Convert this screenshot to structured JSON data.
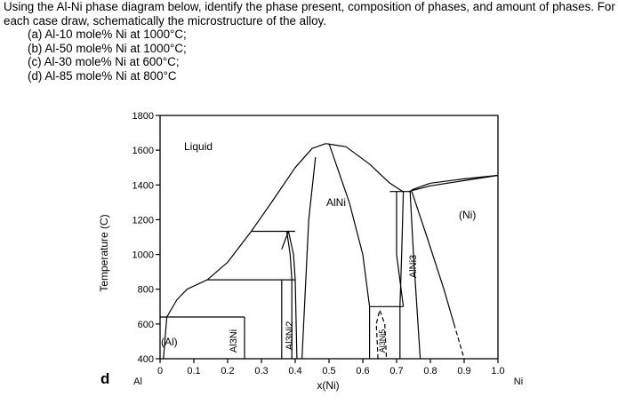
{
  "question": {
    "intro": "Using the Al-Ni phase diagram below, identify the phase present, composition of phases, and amount of phases. For each case draw, schematically the microstructure of the alloy.",
    "items": [
      "(a) Al-10 mole% Ni at 1000°C;",
      "(b) Al-50 mole% Ni at 1000°C;",
      "(c) Al-30 mole% Ni at 600°C;",
      "(d) Al-85 mole% Ni at 800°C"
    ]
  },
  "figure": {
    "panel_label": "d",
    "ylabel": "Temperature (C)",
    "xlabel": "x(Ni)",
    "left_end_label": "Al",
    "right_end_label": "Ni",
    "phase_labels": {
      "liquid": "Liquid",
      "alni": "AlNi",
      "ni": "(Ni)",
      "al": "(Al)",
      "al3ni": "Al3Ni",
      "al3ni2": "Al3Ni2",
      "alni3": "AlNi3",
      "al3ni5": "Al3Ni5"
    }
  },
  "chart_data": {
    "type": "line",
    "x_ticks": [
      0,
      0.1,
      0.2,
      0.3,
      0.4,
      0.5,
      0.6,
      0.7,
      0.8,
      0.9,
      1.0
    ],
    "x_tick_labels": [
      "0",
      "0.1",
      "0.2",
      "0.3",
      "0.4",
      "0.5",
      "0.6",
      "0.7",
      "0.8",
      "0.9",
      "1.0"
    ],
    "y_ticks": [
      400,
      600,
      800,
      1000,
      1200,
      1400,
      1600,
      1800
    ],
    "xlim": [
      0,
      1.0
    ],
    "ylim": [
      400,
      1800
    ],
    "xlabel": "x(Ni)",
    "ylabel": "Temperature (C)",
    "grid": false,
    "series": [
      {
        "style": "solid",
        "points": [
          [
            0,
            640
          ],
          [
            0.02,
            640
          ],
          [
            0.05,
            740
          ],
          [
            0.08,
            800
          ],
          [
            0.14,
            854
          ]
        ]
      },
      {
        "style": "solid",
        "points": [
          [
            0.14,
            854
          ],
          [
            0.2,
            955
          ],
          [
            0.27,
            1133
          ],
          [
            0.33,
            1300
          ],
          [
            0.4,
            1500
          ],
          [
            0.45,
            1610
          ],
          [
            0.49,
            1638
          ]
        ]
      },
      {
        "style": "solid",
        "points": [
          [
            0.49,
            1638
          ],
          [
            0.55,
            1620
          ],
          [
            0.62,
            1520
          ],
          [
            0.68,
            1410
          ],
          [
            0.72,
            1360
          ]
        ]
      },
      {
        "style": "solid",
        "points": [
          [
            0.745,
            1372
          ],
          [
            0.8,
            1410
          ],
          [
            0.9,
            1435
          ],
          [
            1.0,
            1455
          ]
        ]
      },
      {
        "style": "solid",
        "points": [
          [
            0.735,
            1362
          ],
          [
            0.8,
            1395
          ],
          [
            0.9,
            1425
          ],
          [
            1.0,
            1455
          ]
        ]
      },
      {
        "style": "solid",
        "points": [
          [
            0.02,
            640
          ],
          [
            0.25,
            640
          ]
        ]
      },
      {
        "style": "solid",
        "points": [
          [
            0.14,
            854
          ],
          [
            0.4,
            854
          ]
        ]
      },
      {
        "style": "solid",
        "points": [
          [
            0.27,
            1133
          ],
          [
            0.4,
            1133
          ]
        ]
      },
      {
        "style": "solid",
        "points": [
          [
            0.68,
            1362
          ],
          [
            0.745,
            1362
          ]
        ]
      },
      {
        "style": "solid",
        "points": [
          [
            0.62,
            700
          ],
          [
            0.72,
            700
          ]
        ]
      },
      {
        "style": "solid",
        "points": [
          [
            0.02,
            640
          ],
          [
            0.01,
            400
          ]
        ]
      },
      {
        "style": "solid",
        "points": [
          [
            0.25,
            640
          ],
          [
            0.25,
            400
          ]
        ]
      },
      {
        "style": "solid",
        "points": [
          [
            0.36,
            854
          ],
          [
            0.36,
            400
          ]
        ]
      },
      {
        "style": "solid",
        "points": [
          [
            0.36,
            1030
          ],
          [
            0.38,
            1133
          ],
          [
            0.395,
            1000
          ],
          [
            0.4,
            854
          ],
          [
            0.405,
            400
          ]
        ]
      },
      {
        "style": "solid",
        "points": [
          [
            0.375,
            1133
          ],
          [
            0.385,
            1000
          ],
          [
            0.39,
            854
          ],
          [
            0.39,
            400
          ]
        ]
      },
      {
        "style": "solid",
        "points": [
          [
            0.46,
            1560
          ],
          [
            0.44,
            1200
          ],
          [
            0.43,
            800
          ],
          [
            0.42,
            400
          ]
        ]
      },
      {
        "style": "solid",
        "points": [
          [
            0.5,
            1638
          ],
          [
            0.56,
            1300
          ],
          [
            0.6,
            1000
          ],
          [
            0.62,
            700
          ],
          [
            0.62,
            400
          ]
        ]
      },
      {
        "style": "solid",
        "points": [
          [
            0.72,
            700
          ],
          [
            0.7,
            1000
          ],
          [
            0.7,
            1362
          ]
        ]
      },
      {
        "style": "dashed",
        "points": [
          [
            0.645,
            400
          ],
          [
            0.64,
            600
          ],
          [
            0.65,
            680
          ],
          [
            0.665,
            600
          ],
          [
            0.67,
            400
          ]
        ]
      },
      {
        "style": "solid",
        "points": [
          [
            0.72,
            1362
          ],
          [
            0.715,
            1000
          ],
          [
            0.71,
            700
          ],
          [
            0.71,
            400
          ]
        ]
      },
      {
        "style": "solid",
        "points": [
          [
            0.74,
            1362
          ],
          [
            0.75,
            1000
          ],
          [
            0.76,
            700
          ],
          [
            0.77,
            400
          ]
        ]
      },
      {
        "style": "solid",
        "points": [
          [
            0.745,
            1362
          ],
          [
            0.79,
            1100
          ],
          [
            0.84,
            800
          ],
          [
            0.87,
            600
          ]
        ]
      },
      {
        "style": "dashed",
        "points": [
          [
            0.87,
            600
          ],
          [
            0.9,
            400
          ]
        ]
      }
    ],
    "annotations": [
      "Liquid",
      "AlNi",
      "(Ni)",
      "(Al)",
      "Al3Ni",
      "Al3Ni2",
      "AlNi3",
      "Al3Ni5"
    ]
  }
}
